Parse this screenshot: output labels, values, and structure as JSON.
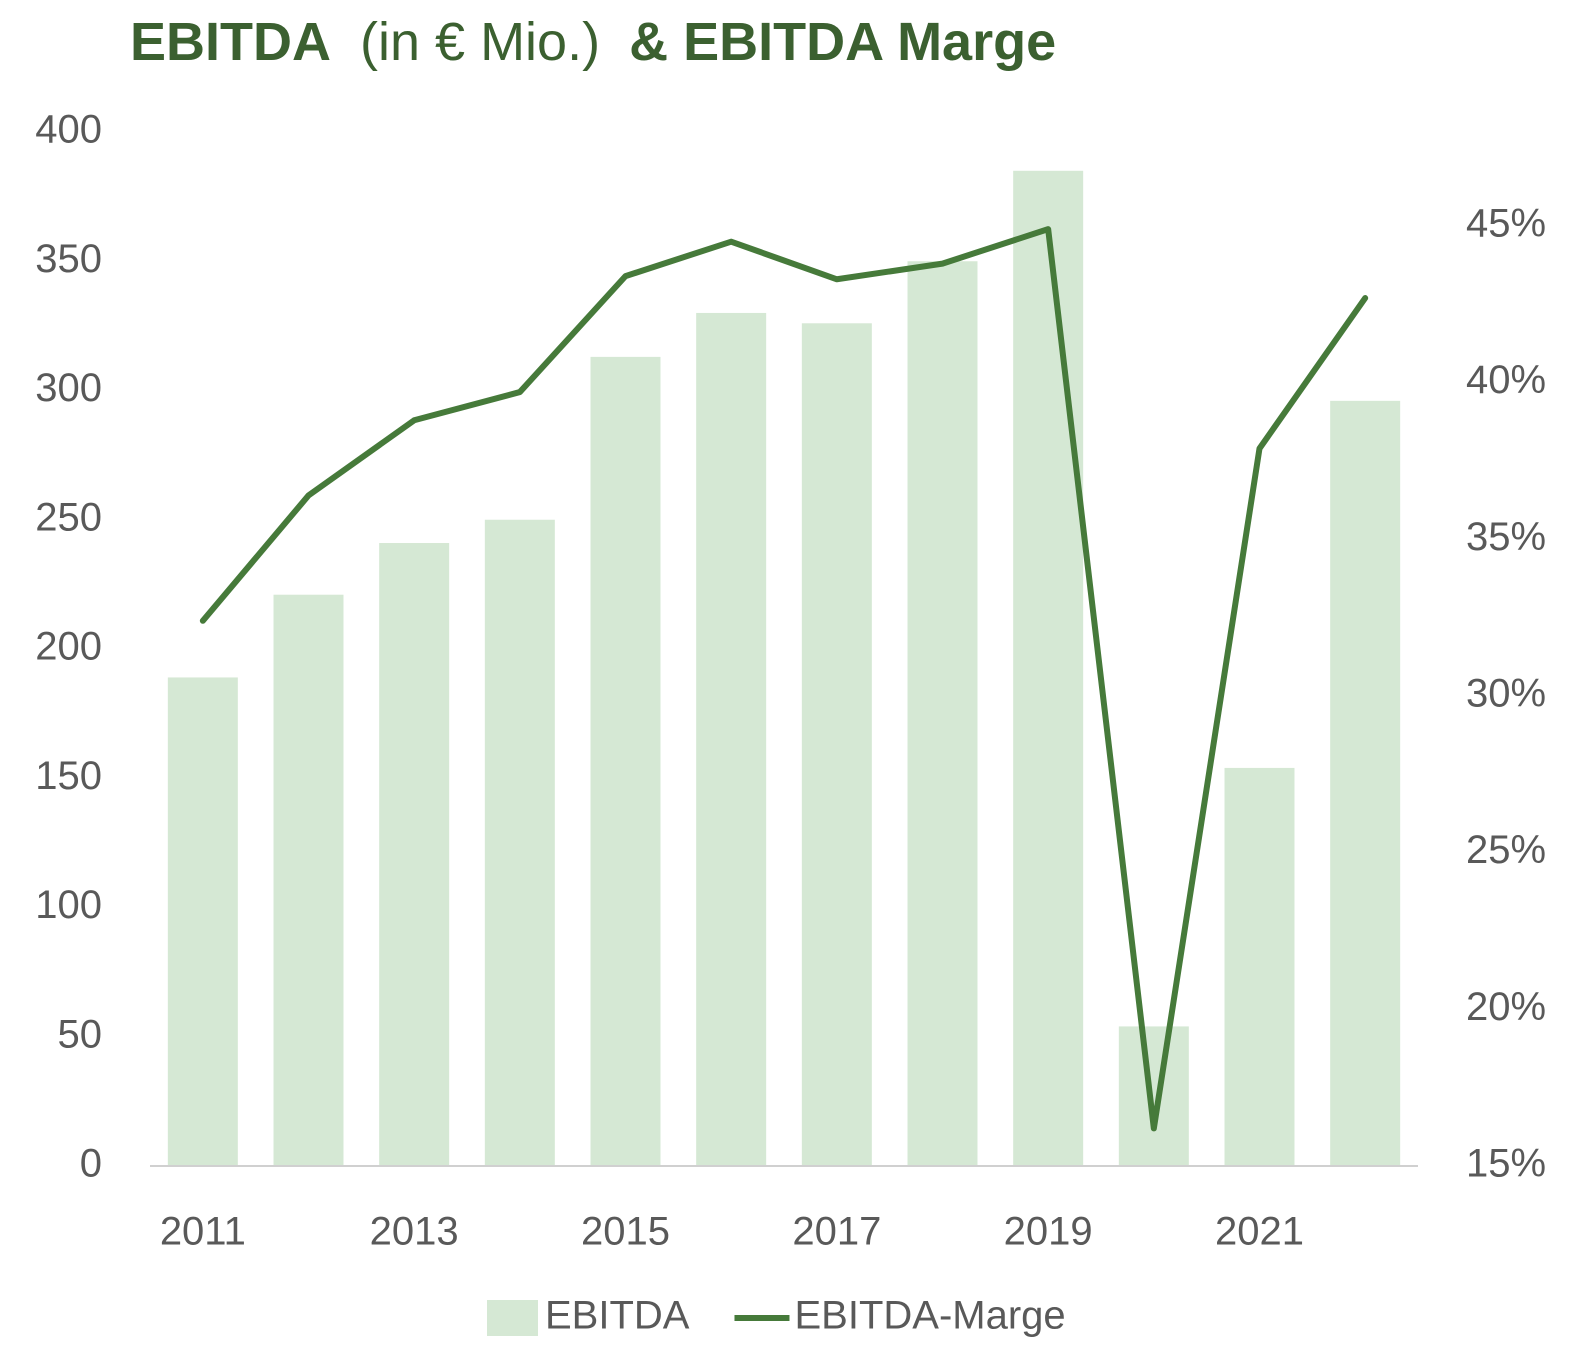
{
  "chart_data": {
    "type": "bar-line",
    "title": [
      "EBITDA",
      "(in € Mio.)",
      "& EBITDA Marge"
    ],
    "categories": [
      "2011",
      null,
      "2013",
      null,
      "2015",
      null,
      "2017",
      null,
      "2019",
      null,
      "2021",
      null
    ],
    "series": [
      {
        "name": "EBITDA",
        "type": "bar",
        "axis": "y",
        "color": "#d5e8d4",
        "values": [
          189,
          221,
          241,
          250,
          313,
          330,
          326,
          350,
          385,
          54,
          154,
          296
        ]
      },
      {
        "name": "EBITDA-Marge",
        "type": "line",
        "axis": "y2",
        "color": "#467a3a",
        "values": [
          32.4,
          36.4,
          38.8,
          39.7,
          43.4,
          44.5,
          43.3,
          43.8,
          44.9,
          16.2,
          37.9,
          42.7
        ]
      }
    ],
    "ylim": [
      0,
      400
    ],
    "yticks": [
      0,
      50,
      100,
      150,
      200,
      250,
      300,
      350,
      400
    ],
    "y2lim": [
      15,
      48
    ],
    "y2ticks": [
      {
        "value": 15,
        "label": "15%"
      },
      {
        "value": 20,
        "label": "20%"
      },
      {
        "value": 25,
        "label": "25%"
      },
      {
        "value": 30,
        "label": "30%"
      },
      {
        "value": 35,
        "label": "35%"
      },
      {
        "value": 40,
        "label": "40%"
      },
      {
        "value": 45,
        "label": "45%"
      }
    ],
    "legend": "bottom"
  }
}
